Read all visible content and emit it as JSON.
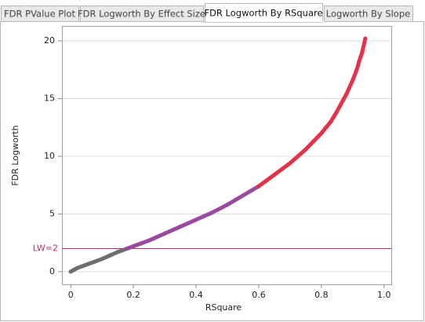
{
  "tabs": {
    "items": [
      "FDR PValue Plot",
      "FDR Logworth By Effect Size",
      "FDR Logworth By RSquare",
      "Logworth By Slope"
    ],
    "active": 2
  },
  "chart_data": {
    "type": "scatter",
    "x_label": "RSquare",
    "y_label": "FDR Logworth",
    "xlim": [
      -0.028,
      1.023
    ],
    "ylim": [
      -1.1,
      21.3
    ],
    "xticks": [
      0,
      0.2,
      0.4,
      0.6,
      0.8,
      {
        "value": 1,
        "label": "1.0"
      }
    ],
    "yticks": [
      0,
      5,
      10,
      15,
      20
    ],
    "grid": true,
    "reference_line": {
      "label": "LW=2",
      "value": 2,
      "color": "#b0306a"
    },
    "series": [
      {
        "color": "#6e6e6e",
        "x": [
          0,
          0.01,
          0.02,
          0.035,
          0.05,
          0.075,
          0.1,
          0.125,
          0.15,
          0.165,
          0.18
        ],
        "values": [
          0,
          0.15,
          0.3,
          0.45,
          0.6,
          0.85,
          1.1,
          1.4,
          1.7,
          1.85,
          2.0
        ]
      },
      {
        "color": "#9a4a9e",
        "x": [
          0.18,
          0.2,
          0.225,
          0.25,
          0.275,
          0.3,
          0.325,
          0.35,
          0.375,
          0.4,
          0.425,
          0.45,
          0.475,
          0.5,
          0.525,
          0.55,
          0.575,
          0.6
        ],
        "values": [
          2.0,
          2.2,
          2.45,
          2.7,
          3.0,
          3.3,
          3.6,
          3.9,
          4.2,
          4.5,
          4.8,
          5.1,
          5.45,
          5.8,
          6.2,
          6.6,
          7.0,
          7.4
        ]
      },
      {
        "color": "#e3334b",
        "x": [
          0.6,
          0.625,
          0.65,
          0.675,
          0.7,
          0.725,
          0.75,
          0.775,
          0.8,
          0.815,
          0.83,
          0.84,
          0.85,
          0.86,
          0.87,
          0.88,
          0.89,
          0.9,
          0.91,
          0.915,
          0.92,
          0.925,
          0.93,
          0.94
        ],
        "values": [
          7.4,
          7.9,
          8.4,
          8.9,
          9.4,
          10.0,
          10.6,
          11.3,
          12.0,
          12.5,
          13.0,
          13.45,
          13.9,
          14.4,
          14.9,
          15.4,
          16.0,
          16.6,
          17.3,
          17.7,
          18.2,
          18.6,
          19.0,
          20.2
        ]
      }
    ]
  }
}
